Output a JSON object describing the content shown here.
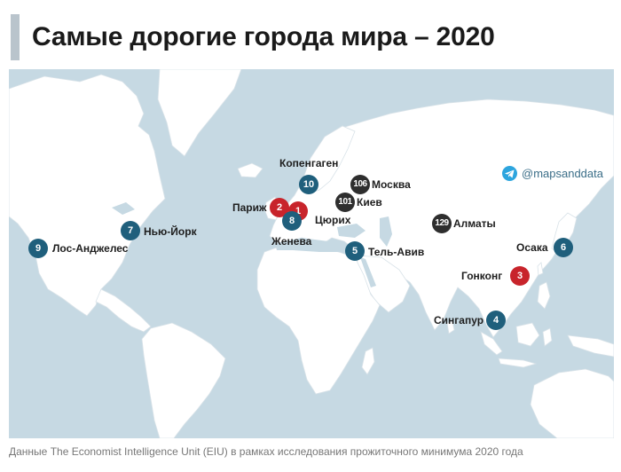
{
  "title": "Самые дорогие города мира – 2020",
  "watermark": "@mapsanddata",
  "source": "Данные The Economist Intelligence Unit (EIU) в рамках исследования прожиточного минимума 2020 года",
  "colors": {
    "ocean": "#c6d9e3",
    "land": "#ffffff",
    "marker_blue": "#1f5f7c",
    "marker_red": "#c8242b",
    "marker_dark": "#2e2e2e"
  },
  "cities": [
    {
      "rank": "1",
      "name": "Цюрих",
      "color": "red"
    },
    {
      "rank": "2",
      "name": "Париж",
      "color": "red"
    },
    {
      "rank": "3",
      "name": "Гонконг",
      "color": "red"
    },
    {
      "rank": "4",
      "name": "Сингапур",
      "color": "blue"
    },
    {
      "rank": "5",
      "name": "Тель-Авив",
      "color": "blue"
    },
    {
      "rank": "6",
      "name": "Осака",
      "color": "blue"
    },
    {
      "rank": "7",
      "name": "Нью-Йорк",
      "color": "blue"
    },
    {
      "rank": "8",
      "name": "Женева",
      "color": "blue"
    },
    {
      "rank": "9",
      "name": "Лос-Анджелес",
      "color": "blue"
    },
    {
      "rank": "10",
      "name": "Копенгаген",
      "color": "blue"
    },
    {
      "rank": "101",
      "name": "Киев",
      "color": "dark"
    },
    {
      "rank": "106",
      "name": "Москва",
      "color": "dark"
    },
    {
      "rank": "129",
      "name": "Алматы",
      "color": "dark"
    }
  ]
}
